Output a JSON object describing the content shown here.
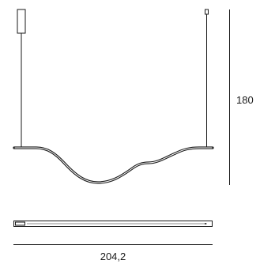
{
  "drawing": {
    "height_dimension": "180",
    "width_dimension": "204,2"
  },
  "colors": {
    "line": "#1a1a1a",
    "background": "#ffffff"
  }
}
